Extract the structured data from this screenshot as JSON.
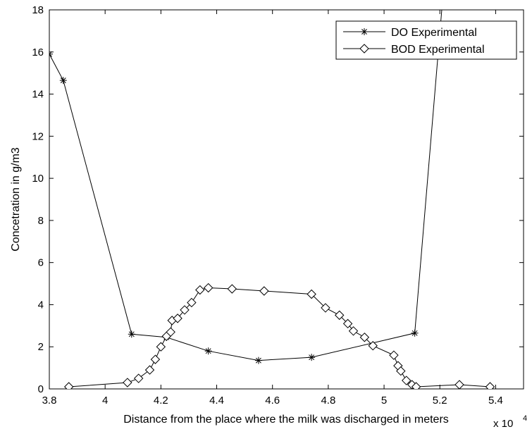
{
  "chart_data": {
    "type": "line",
    "title": "",
    "xlabel": "Distance from the place where the milk was discharged in meters",
    "ylabel": "Concetration in g/m3",
    "x_multiplier_label": "x 10",
    "x_multiplier_exponent": "4",
    "xlim": [
      38000,
      55000
    ],
    "ylim": [
      0,
      18
    ],
    "xticks": [
      38000,
      40000,
      42000,
      44000,
      46000,
      48000,
      50000,
      52000,
      54000
    ],
    "xtick_labels": [
      "3.8",
      "4",
      "4.2",
      "4.4",
      "4.6",
      "4.8",
      "5",
      "5.2",
      "5.4"
    ],
    "yticks": [
      0,
      2,
      4,
      6,
      8,
      10,
      12,
      14,
      16,
      18
    ],
    "ytick_labels": [
      "0",
      "2",
      "4",
      "6",
      "8",
      "10",
      "12",
      "14",
      "16",
      "18"
    ],
    "grid": false,
    "legend_position": "top-right",
    "series": [
      {
        "name": "DO Experimental",
        "marker": "asterisk",
        "color": "#000000",
        "x": [
          38000,
          38500,
          40950,
          42200,
          43700,
          45500,
          47400,
          51100,
          52100
        ],
        "y": [
          15.9,
          14.65,
          2.6,
          2.45,
          1.8,
          1.35,
          1.5,
          2.65,
          18.5
        ]
      },
      {
        "name": "BOD Experimental",
        "marker": "diamond",
        "color": "#000000",
        "x": [
          38700,
          40800,
          41200,
          41600,
          41800,
          42000,
          42200,
          42350,
          42400,
          42600,
          42850,
          43100,
          43400,
          43700,
          44550,
          45700,
          47400,
          47900,
          48400,
          48700,
          48900,
          49300,
          49600,
          50350,
          50500,
          50600,
          50800,
          51000,
          51150,
          52700,
          53800
        ],
        "y": [
          0.1,
          0.3,
          0.5,
          0.9,
          1.4,
          2.0,
          2.5,
          2.7,
          3.25,
          3.35,
          3.75,
          4.1,
          4.7,
          4.8,
          4.75,
          4.65,
          4.5,
          3.85,
          3.5,
          3.1,
          2.75,
          2.45,
          2.05,
          1.6,
          1.1,
          0.85,
          0.4,
          0.2,
          0.1,
          0.2,
          0.1
        ]
      }
    ]
  }
}
